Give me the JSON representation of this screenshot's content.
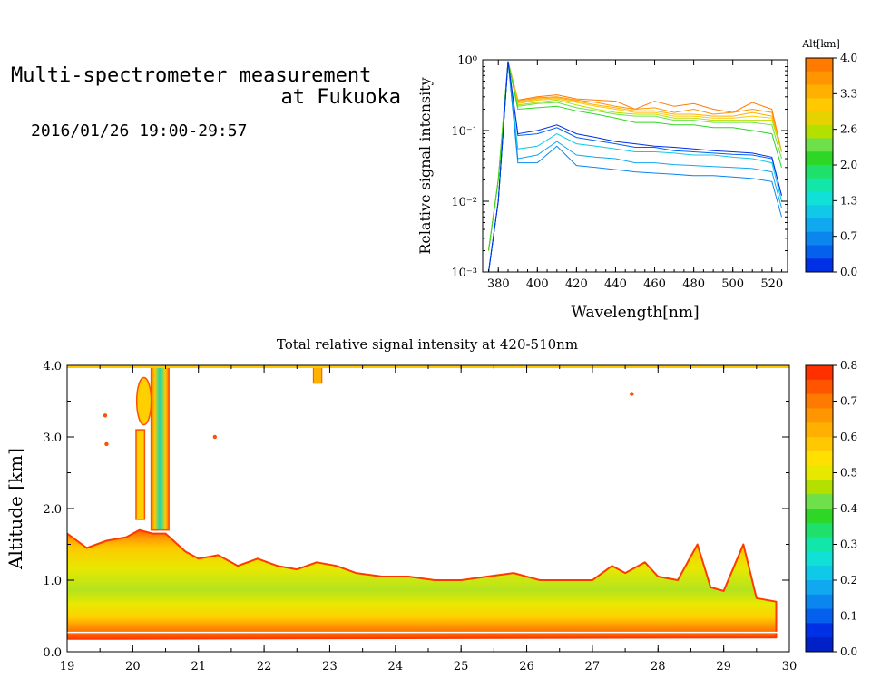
{
  "header": {
    "title_line1": "Multi-spectrometer measurement",
    "title_line2": "at Fukuoka",
    "datetime": "2016/01/26 19:00-29:57"
  },
  "chart_data": [
    {
      "type": "line",
      "xlabel": "Wavelength[nm]",
      "ylabel": "Relative signal intensity",
      "xlim": [
        372,
        528
      ],
      "ylim": [
        0.001,
        1
      ],
      "yscale": "log",
      "x_ticks": [
        "380",
        "400",
        "420",
        "440",
        "460",
        "480",
        "500",
        "520"
      ],
      "y_ticks": [
        "10⁰",
        "10⁻¹",
        "10⁻²",
        "10⁻³"
      ],
      "x": [
        375,
        380,
        385,
        390,
        400,
        410,
        420,
        430,
        440,
        450,
        460,
        470,
        480,
        490,
        500,
        510,
        520,
        525
      ],
      "colorbar": {
        "title": "Alt[km]",
        "tick_labels": [
          "4.0",
          "3.3",
          "2.6",
          "2.0",
          "1.3",
          "0.7",
          "0.0"
        ],
        "colors": [
          "#ff7a00",
          "#ff9500",
          "#ffb000",
          "#ffc800",
          "#e6d200",
          "#b4e000",
          "#6ee04a",
          "#2ed626",
          "#1ee06a",
          "#12e6a8",
          "#10e0d6",
          "#10c8e8",
          "#10a8ee",
          "#0a86ee",
          "#0560ee",
          "#0030e6"
        ]
      },
      "series": [
        {
          "color": "#ff7a00",
          "values": [
            0.002,
            0.02,
            0.95,
            0.27,
            0.3,
            0.32,
            0.28,
            0.27,
            0.26,
            0.2,
            0.26,
            0.22,
            0.24,
            0.2,
            0.18,
            0.25,
            0.2,
            0.05
          ]
        },
        {
          "color": "#ff9500",
          "values": [
            0.002,
            0.02,
            0.95,
            0.26,
            0.29,
            0.3,
            0.27,
            0.25,
            0.22,
            0.2,
            0.21,
            0.18,
            0.2,
            0.17,
            0.18,
            0.2,
            0.18,
            0.05
          ]
        },
        {
          "color": "#ffb000",
          "values": [
            0.002,
            0.02,
            0.95,
            0.25,
            0.28,
            0.29,
            0.26,
            0.23,
            0.21,
            0.19,
            0.19,
            0.17,
            0.17,
            0.16,
            0.16,
            0.18,
            0.16,
            0.05
          ]
        },
        {
          "color": "#ffc800",
          "values": [
            0.002,
            0.02,
            0.95,
            0.24,
            0.27,
            0.28,
            0.25,
            0.22,
            0.2,
            0.18,
            0.18,
            0.16,
            0.16,
            0.15,
            0.15,
            0.16,
            0.15,
            0.05
          ]
        },
        {
          "color": "#b4e000",
          "values": [
            0.002,
            0.02,
            0.95,
            0.23,
            0.25,
            0.27,
            0.23,
            0.2,
            0.18,
            0.17,
            0.17,
            0.15,
            0.15,
            0.14,
            0.14,
            0.14,
            0.14,
            0.05
          ]
        },
        {
          "color": "#6ee04a",
          "values": [
            0.002,
            0.02,
            0.95,
            0.22,
            0.24,
            0.25,
            0.21,
            0.19,
            0.17,
            0.16,
            0.16,
            0.14,
            0.14,
            0.13,
            0.13,
            0.13,
            0.12,
            0.04
          ]
        },
        {
          "color": "#2ed626",
          "values": [
            0.002,
            0.02,
            0.95,
            0.2,
            0.21,
            0.22,
            0.19,
            0.17,
            0.15,
            0.13,
            0.13,
            0.12,
            0.12,
            0.11,
            0.11,
            0.1,
            0.09,
            0.03
          ]
        },
        {
          "color": "#10c8e8",
          "values": [
            0.001,
            0.01,
            0.95,
            0.055,
            0.06,
            0.09,
            0.065,
            0.06,
            0.055,
            0.05,
            0.05,
            0.048,
            0.045,
            0.045,
            0.042,
            0.04,
            0.035,
            0.01
          ]
        },
        {
          "color": "#10a8ee",
          "values": [
            0.001,
            0.01,
            0.95,
            0.04,
            0.045,
            0.07,
            0.045,
            0.042,
            0.04,
            0.035,
            0.035,
            0.033,
            0.032,
            0.031,
            0.03,
            0.029,
            0.026,
            0.008
          ]
        },
        {
          "color": "#0a86ee",
          "values": [
            0.001,
            0.01,
            0.95,
            0.035,
            0.035,
            0.06,
            0.032,
            0.03,
            0.028,
            0.026,
            0.025,
            0.024,
            0.023,
            0.023,
            0.022,
            0.021,
            0.019,
            0.006
          ]
        },
        {
          "color": "#0560ee",
          "values": [
            0.001,
            0.01,
            0.95,
            0.085,
            0.09,
            0.11,
            0.08,
            0.072,
            0.065,
            0.058,
            0.058,
            0.052,
            0.05,
            0.048,
            0.046,
            0.045,
            0.04,
            0.012
          ]
        },
        {
          "color": "#0030e6",
          "values": [
            0.001,
            0.01,
            0.95,
            0.09,
            0.1,
            0.12,
            0.09,
            0.08,
            0.07,
            0.065,
            0.06,
            0.058,
            0.055,
            0.052,
            0.05,
            0.048,
            0.042,
            0.012
          ]
        }
      ]
    },
    {
      "type": "heatmap",
      "title": "Total relative signal intensity at 420-510nm",
      "ylabel": "Altitude [km]",
      "xlim": [
        19,
        30
      ],
      "ylim": [
        0,
        4
      ],
      "x_ticks": [
        "19",
        "20",
        "21",
        "22",
        "23",
        "24",
        "25",
        "26",
        "27",
        "28",
        "29",
        "30"
      ],
      "y_ticks": [
        "4.0",
        "3.0",
        "2.0",
        "1.0",
        "0.0"
      ],
      "colorbar": {
        "tick_labels": [
          "0.8",
          "0.7",
          "0.6",
          "0.5",
          "0.4",
          "0.3",
          "0.2",
          "0.1",
          "0.0"
        ],
        "colors": [
          "#ff3000",
          "#ff5500",
          "#ff7a00",
          "#ff9500",
          "#ffb000",
          "#ffc800",
          "#ffe000",
          "#e6e800",
          "#b4e000",
          "#6ee04a",
          "#2ed626",
          "#1ee06a",
          "#12e6a8",
          "#10e0d6",
          "#10c8e8",
          "#10a8ee",
          "#0a86ee",
          "#0560ee",
          "#0030e6",
          "#0020c8"
        ]
      },
      "boundary_layer_top_km": [
        {
          "t": 19.0,
          "h": 1.65
        },
        {
          "t": 19.3,
          "h": 1.45
        },
        {
          "t": 19.6,
          "h": 1.55
        },
        {
          "t": 19.9,
          "h": 1.6
        },
        {
          "t": 20.1,
          "h": 1.7
        },
        {
          "t": 20.3,
          "h": 1.65
        },
        {
          "t": 20.5,
          "h": 1.65
        },
        {
          "t": 20.8,
          "h": 1.4
        },
        {
          "t": 21.0,
          "h": 1.3
        },
        {
          "t": 21.3,
          "h": 1.35
        },
        {
          "t": 21.6,
          "h": 1.2
        },
        {
          "t": 21.9,
          "h": 1.3
        },
        {
          "t": 22.2,
          "h": 1.2
        },
        {
          "t": 22.5,
          "h": 1.15
        },
        {
          "t": 22.8,
          "h": 1.25
        },
        {
          "t": 23.1,
          "h": 1.2
        },
        {
          "t": 23.4,
          "h": 1.1
        },
        {
          "t": 23.8,
          "h": 1.05
        },
        {
          "t": 24.2,
          "h": 1.05
        },
        {
          "t": 24.6,
          "h": 1.0
        },
        {
          "t": 25.0,
          "h": 1.0
        },
        {
          "t": 25.4,
          "h": 1.05
        },
        {
          "t": 25.8,
          "h": 1.1
        },
        {
          "t": 26.2,
          "h": 1.0
        },
        {
          "t": 26.6,
          "h": 1.0
        },
        {
          "t": 27.0,
          "h": 1.0
        },
        {
          "t": 27.3,
          "h": 1.2
        },
        {
          "t": 27.5,
          "h": 1.1
        },
        {
          "t": 27.8,
          "h": 1.25
        },
        {
          "t": 28.0,
          "h": 1.05
        },
        {
          "t": 28.3,
          "h": 1.0
        },
        {
          "t": 28.6,
          "h": 1.5
        },
        {
          "t": 28.8,
          "h": 0.9
        },
        {
          "t": 29.0,
          "h": 0.85
        },
        {
          "t": 29.3,
          "h": 1.5
        },
        {
          "t": 29.5,
          "h": 0.75
        },
        {
          "t": 29.8,
          "h": 0.7
        }
      ]
    }
  ]
}
